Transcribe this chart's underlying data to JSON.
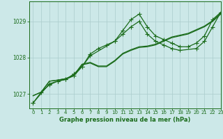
{
  "background_color": "#cce8e8",
  "plot_bg_color": "#cce8e8",
  "grid_color": "#aacccc",
  "line_color": "#1a6b1a",
  "title": "Graphe pression niveau de la mer (hPa)",
  "xlim": [
    -0.5,
    23
  ],
  "ylim": [
    1026.6,
    1029.55
  ],
  "yticks": [
    1027,
    1028,
    1029
  ],
  "xticks": [
    0,
    1,
    2,
    3,
    4,
    5,
    6,
    7,
    8,
    9,
    10,
    11,
    12,
    13,
    14,
    15,
    16,
    17,
    18,
    19,
    20,
    21,
    22,
    23
  ],
  "series": [
    {
      "x": [
        0,
        1,
        2,
        3,
        4,
        5,
        6,
        7,
        8,
        9,
        10,
        11,
        12,
        13,
        14,
        15,
        16,
        17,
        18,
        19,
        20,
        21,
        22,
        23
      ],
      "y": [
        1026.95,
        1027.05,
        1027.35,
        1027.38,
        1027.42,
        1027.5,
        1027.8,
        1027.85,
        1027.75,
        1027.75,
        1027.9,
        1028.1,
        1028.2,
        1028.28,
        1028.3,
        1028.35,
        1028.45,
        1028.55,
        1028.6,
        1028.65,
        1028.75,
        1028.85,
        1029.0,
        1029.2
      ],
      "marker": false,
      "lw": 0.9
    },
    {
      "x": [
        0,
        1,
        2,
        3,
        4,
        5,
        6,
        7,
        8,
        9,
        10,
        11,
        12,
        13,
        14,
        15,
        16,
        17,
        18,
        19,
        20,
        21,
        22,
        23
      ],
      "y": [
        1026.95,
        1027.05,
        1027.35,
        1027.38,
        1027.42,
        1027.52,
        1027.82,
        1027.87,
        1027.77,
        1027.77,
        1027.92,
        1028.12,
        1028.22,
        1028.3,
        1028.32,
        1028.37,
        1028.47,
        1028.57,
        1028.62,
        1028.67,
        1028.77,
        1028.87,
        1029.02,
        1029.22
      ],
      "marker": false,
      "lw": 0.9
    },
    {
      "x": [
        0,
        1,
        2,
        3,
        4,
        5,
        6,
        7,
        8,
        9,
        10,
        11,
        12,
        13,
        14,
        15,
        16,
        17,
        18,
        19,
        20,
        21,
        22,
        23
      ],
      "y": [
        1026.75,
        1027.05,
        1027.25,
        1027.35,
        1027.4,
        1027.55,
        1027.75,
        1028.1,
        1028.25,
        1028.35,
        1028.45,
        1028.75,
        1029.05,
        1029.2,
        1028.85,
        1028.6,
        1028.5,
        1028.4,
        1028.3,
        1028.3,
        1028.4,
        1028.6,
        1029.05,
        1029.25
      ],
      "marker": true,
      "lw": 0.9
    },
    {
      "x": [
        0,
        2,
        3,
        4,
        5,
        6,
        7,
        10,
        11,
        12,
        13,
        14,
        15,
        16,
        17,
        18,
        20,
        21,
        22,
        23
      ],
      "y": [
        1026.75,
        1027.28,
        1027.35,
        1027.4,
        1027.5,
        1027.75,
        1028.05,
        1028.45,
        1028.65,
        1028.85,
        1029.0,
        1028.65,
        1028.45,
        1028.35,
        1028.25,
        1028.2,
        1028.25,
        1028.45,
        1028.85,
        1029.25
      ],
      "marker": true,
      "lw": 0.9
    }
  ],
  "marker_style": "+",
  "marker_size": 4
}
